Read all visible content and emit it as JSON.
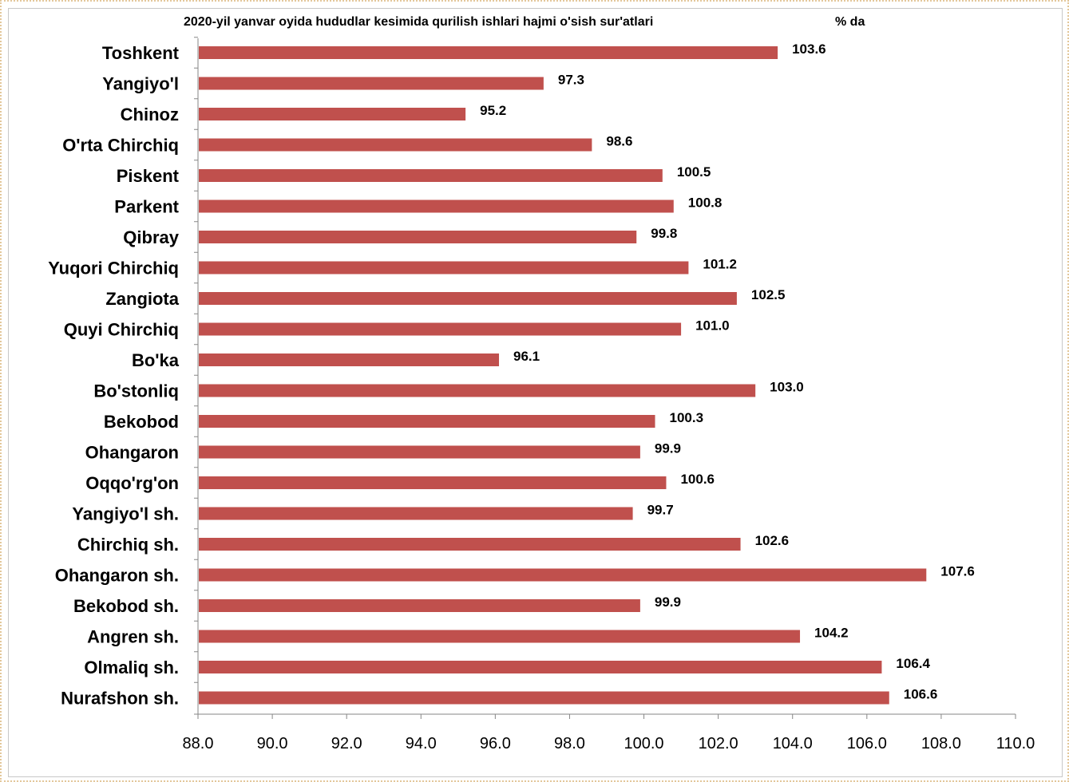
{
  "chart_data": {
    "type": "bar",
    "orientation": "horizontal",
    "title": "2020-yil yanvar oyida hududlar kesimida qurilish ishlari hajmi o'sish sur'atlari",
    "unit_label": "% da",
    "categories": [
      "Toshkent",
      "Yangiyo'l",
      "Chinoz",
      "O'rta Chirchiq",
      "Piskent",
      "Parkent",
      "Qibray",
      "Yuqori Chirchiq",
      "Zangiota",
      "Quyi Chirchiq",
      "Bo'ka",
      "Bo'stonliq",
      "Bekobod",
      "Ohangaron",
      "Oqqo'rg'on",
      "Yangiyo'l sh.",
      "Chirchiq sh.",
      "Ohangaron sh.",
      "Bekobod sh.",
      "Angren sh.",
      "Olmaliq sh.",
      "Nurafshon sh."
    ],
    "values": [
      103.6,
      97.3,
      95.2,
      98.6,
      100.5,
      100.8,
      99.8,
      101.2,
      102.5,
      101.0,
      96.1,
      103.0,
      100.3,
      99.9,
      100.6,
      99.7,
      102.6,
      107.6,
      99.9,
      104.2,
      106.4,
      106.6
    ],
    "value_labels": [
      "103.6",
      "97.3",
      "95.2",
      "98.6",
      "100.5",
      "100.8",
      "99.8",
      "101.2",
      "102.5",
      "101.0",
      "96.1",
      "103.0",
      "100.3",
      "99.9",
      "100.6",
      "99.7",
      "102.6",
      "107.6",
      "99.9",
      "104.2",
      "106.4",
      "106.6"
    ],
    "xlim": [
      88.0,
      110.0
    ],
    "xticks": [
      "88.0",
      "90.0",
      "92.0",
      "94.0",
      "96.0",
      "98.0",
      "100.0",
      "102.0",
      "104.0",
      "106.0",
      "108.0",
      "110.0"
    ],
    "grid": false,
    "legend": "none",
    "bar_color": "#c0504d"
  }
}
